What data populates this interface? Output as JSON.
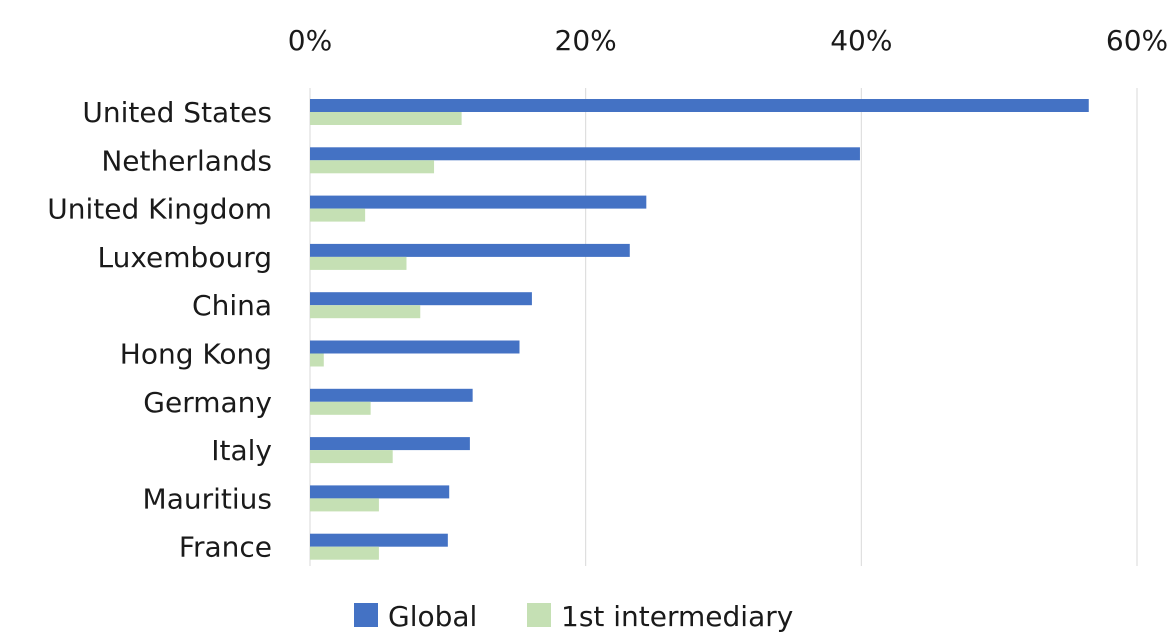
{
  "chart_data": {
    "type": "bar",
    "orientation": "horizontal",
    "categories": [
      "United States",
      "Netherlands",
      "United Kingdom",
      "Luxembourg",
      "China",
      "Hong Kong",
      "Germany",
      "Italy",
      "Mauritius",
      "France"
    ],
    "series": [
      {
        "name": "Global",
        "color": "#4472c4",
        "values": [
          56.5,
          39.9,
          24.4,
          23.2,
          16.1,
          15.2,
          11.8,
          11.6,
          10.1,
          10.0
        ]
      },
      {
        "name": "1st intermediary",
        "color": "#c5e0b4",
        "values": [
          11.0,
          9.0,
          4.0,
          7.0,
          8.0,
          1.0,
          4.4,
          6.0,
          5.0,
          5.0
        ]
      }
    ],
    "xlim": [
      0,
      60
    ],
    "xticks": [
      0,
      20,
      40,
      60
    ],
    "xtick_labels": [
      "0%",
      "20%",
      "40%",
      "60%"
    ],
    "x_axis_position": "top",
    "grid": true,
    "legend_position": "bottom",
    "title": "",
    "xlabel": "",
    "ylabel": ""
  }
}
